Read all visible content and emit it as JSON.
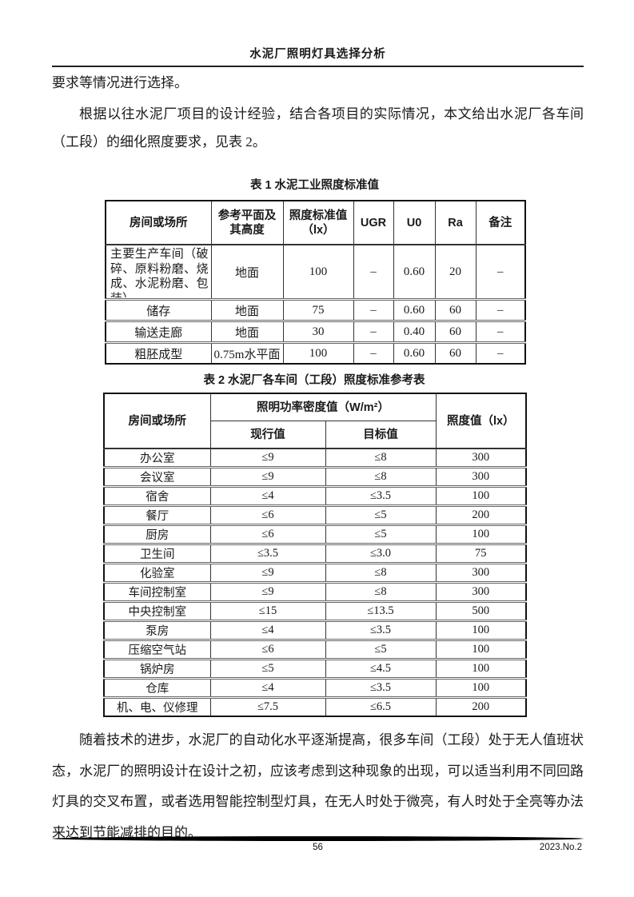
{
  "header": {
    "title": "水泥厂照明灯具选择分析"
  },
  "paragraphs": {
    "p1": "要求等情况进行选择。",
    "p2": "根据以往水泥厂项目的设计经验，结合各项目的实际情况，本文给出水泥厂各车间（工段）的细化照度要求，见表 2。",
    "p3": "随着技术的进步，水泥厂的自动化水平逐渐提高，很多车间（工段）处于无人值班状态，水泥厂的照明设计在设计之初，应该考虑到这种现象的出现，可以适当利用不同回路灯具的交叉布置，或者选用智能控制型灯具，在无人时处于微亮，有人时处于全亮等办法来达到节能减排的目的。"
  },
  "table1": {
    "caption": "表 1 水泥工业照度标准值",
    "headers": [
      "房间或场所",
      "参考平面及其高度",
      "照度标准值（lx）",
      "UGR",
      "U0",
      "Ra",
      "备注"
    ],
    "rows": [
      [
        "主要生产车间（破碎、原料粉磨、烧成、水泥粉磨、包装）",
        "地面",
        "100",
        "–",
        "0.60",
        "20",
        "–"
      ],
      [
        "储存",
        "地面",
        "75",
        "–",
        "0.60",
        "60",
        "–"
      ],
      [
        "输送走廊",
        "地面",
        "30",
        "–",
        "0.40",
        "60",
        "–"
      ],
      [
        "粗胚成型",
        "0.75m水平面",
        "100",
        "–",
        "0.60",
        "60",
        "–"
      ]
    ]
  },
  "table2": {
    "caption": "表 2 水泥厂各车间（工段）照度标准参考表",
    "header": {
      "room": "房间或场所",
      "lpd_group": "照明功率密度值（W/m²）",
      "current": "现行值",
      "target": "目标值",
      "illuminance": "照度值（lx）"
    },
    "rows": [
      [
        "办公室",
        "≤9",
        "≤8",
        "300"
      ],
      [
        "会议室",
        "≤9",
        "≤8",
        "300"
      ],
      [
        "宿舍",
        "≤4",
        "≤3.5",
        "100"
      ],
      [
        "餐厅",
        "≤6",
        "≤5",
        "200"
      ],
      [
        "厨房",
        "≤6",
        "≤5",
        "100"
      ],
      [
        "卫生间",
        "≤3.5",
        "≤3.0",
        "75"
      ],
      [
        "化验室",
        "≤9",
        "≤8",
        "300"
      ],
      [
        "车间控制室",
        "≤9",
        "≤8",
        "300"
      ],
      [
        "中央控制室",
        "≤15",
        "≤13.5",
        "500"
      ],
      [
        "泵房",
        "≤4",
        "≤3.5",
        "100"
      ],
      [
        "压缩空气站",
        "≤6",
        "≤5",
        "100"
      ],
      [
        "锅炉房",
        "≤5",
        "≤4.5",
        "100"
      ],
      [
        "仓库",
        "≤4",
        "≤3.5",
        "100"
      ],
      [
        "机、电、仪修理",
        "≤7.5",
        "≤6.5",
        "200"
      ]
    ]
  },
  "footer": {
    "page_number": "56",
    "issue": "2023.No.2"
  },
  "colors": {
    "text": "#1a1a1a",
    "table_border": "#333333",
    "footer_bar": "#000000"
  }
}
